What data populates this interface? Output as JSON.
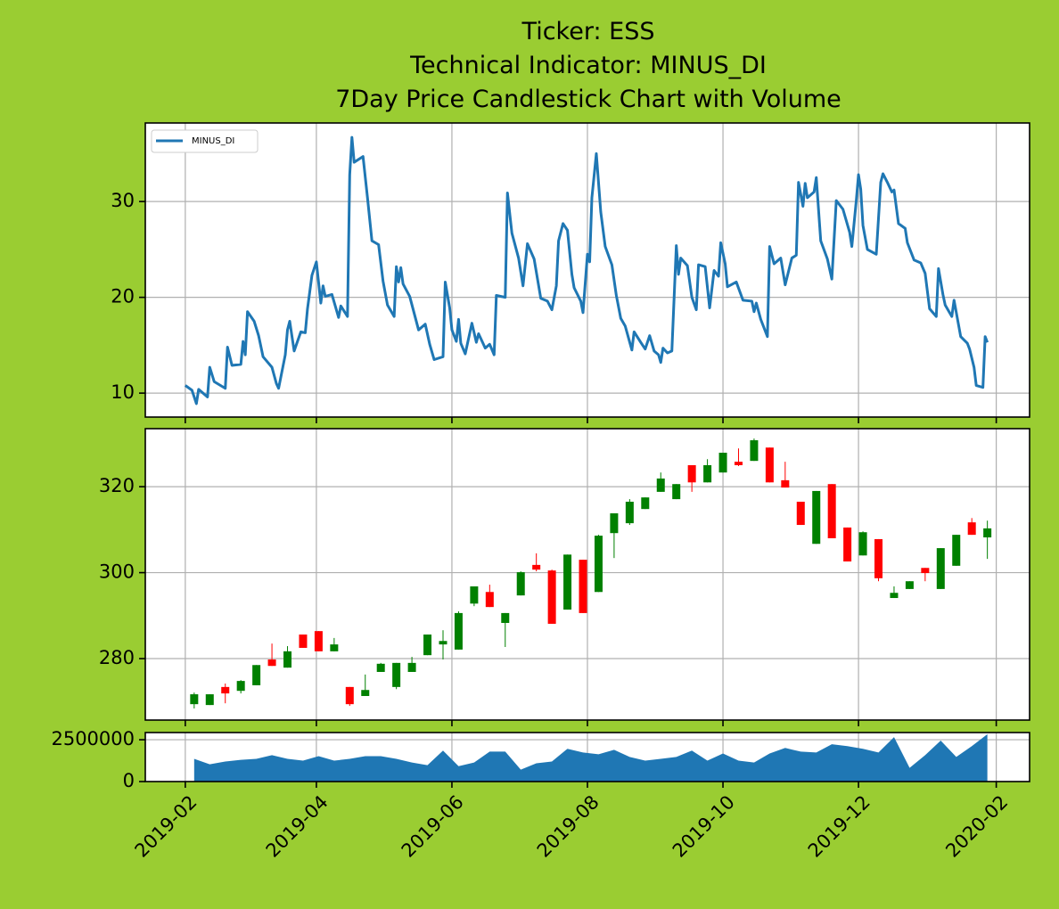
{
  "chart_data": [
    {
      "type": "line",
      "title": [
        "Ticker: ESS",
        "Technical Indicator: MINUS_DI",
        "7Day Price Candlestick Chart with Volume"
      ],
      "x": [
        "2019-02-01",
        "2019-02-04",
        "2019-02-06",
        "2019-02-07",
        "2019-02-11",
        "2019-02-12",
        "2019-02-14",
        "2019-02-19",
        "2019-02-20",
        "2019-02-22",
        "2019-02-26",
        "2019-02-27",
        "2019-02-28",
        "2019-03-01",
        "2019-03-04",
        "2019-03-06",
        "2019-03-08",
        "2019-03-12",
        "2019-03-14",
        "2019-03-15",
        "2019-03-18",
        "2019-03-19",
        "2019-03-20",
        "2019-03-22",
        "2019-03-25",
        "2019-03-27",
        "2019-03-28",
        "2019-03-30",
        "2019-04-01",
        "2019-04-03",
        "2019-04-04",
        "2019-04-05",
        "2019-04-08",
        "2019-04-11",
        "2019-04-12",
        "2019-04-15",
        "2019-04-16",
        "2019-04-17",
        "2019-04-18",
        "2019-04-22",
        "2019-04-24",
        "2019-04-26",
        "2019-04-29",
        "2019-05-01",
        "2019-05-03",
        "2019-05-06",
        "2019-05-07",
        "2019-05-08",
        "2019-05-09",
        "2019-05-10",
        "2019-05-13",
        "2019-05-17",
        "2019-05-20",
        "2019-05-22",
        "2019-05-24",
        "2019-05-28",
        "2019-05-29",
        "2019-05-31",
        "2019-06-01",
        "2019-06-03",
        "2019-06-04",
        "2019-06-05",
        "2019-06-07",
        "2019-06-10",
        "2019-06-12",
        "2019-06-13",
        "2019-06-16",
        "2019-06-18",
        "2019-06-20",
        "2019-06-21",
        "2019-06-25",
        "2019-06-26",
        "2019-06-28",
        "2019-07-01",
        "2019-07-03",
        "2019-07-05",
        "2019-07-08",
        "2019-07-11",
        "2019-07-14",
        "2019-07-16",
        "2019-07-18",
        "2019-07-19",
        "2019-07-21",
        "2019-07-23",
        "2019-07-25",
        "2019-07-26",
        "2019-07-29",
        "2019-07-30",
        "2019-08-01",
        "2019-08-02",
        "2019-08-03",
        "2019-08-05",
        "2019-08-07",
        "2019-08-09",
        "2019-08-12",
        "2019-08-14",
        "2019-08-16",
        "2019-08-18",
        "2019-08-21",
        "2019-08-22",
        "2019-08-25",
        "2019-08-27",
        "2019-08-29",
        "2019-08-31",
        "2019-09-02",
        "2019-09-03",
        "2019-09-04",
        "2019-09-06",
        "2019-09-08",
        "2019-09-10",
        "2019-09-11",
        "2019-09-12",
        "2019-09-15",
        "2019-09-17",
        "2019-09-19",
        "2019-09-20",
        "2019-09-23",
        "2019-09-25",
        "2019-09-27",
        "2019-09-29",
        "2019-09-30",
        "2019-10-02",
        "2019-10-03",
        "2019-10-07",
        "2019-10-10",
        "2019-10-14",
        "2019-10-15",
        "2019-10-16",
        "2019-10-18",
        "2019-10-21",
        "2019-10-22",
        "2019-10-24",
        "2019-10-27",
        "2019-10-29",
        "2019-11-01",
        "2019-11-03",
        "2019-11-04",
        "2019-11-06",
        "2019-11-07",
        "2019-11-08",
        "2019-11-11",
        "2019-11-12",
        "2019-11-14",
        "2019-11-17",
        "2019-11-19",
        "2019-11-21",
        "2019-11-24",
        "2019-11-27",
        "2019-11-28",
        "2019-11-30",
        "2019-12-01",
        "2019-12-02",
        "2019-12-03",
        "2019-12-05",
        "2019-12-09",
        "2019-12-11",
        "2019-12-12",
        "2019-12-14",
        "2019-12-16",
        "2019-12-17",
        "2019-12-19",
        "2019-12-22",
        "2019-12-23",
        "2019-12-26",
        "2019-12-29",
        "2019-12-31",
        "2020-01-02",
        "2020-01-05",
        "2020-01-06",
        "2020-01-08",
        "2020-01-09",
        "2020-01-12",
        "2020-01-13",
        "2020-01-16",
        "2020-01-19",
        "2020-01-20",
        "2020-01-22",
        "2020-01-23",
        "2020-01-26",
        "2020-01-27",
        "2020-01-28"
      ],
      "series": [
        {
          "name": "MINUS_DI",
          "color": "#1f77b4",
          "values": [
            10.8,
            10.3,
            8.9,
            10.4,
            9.6,
            12.7,
            11.2,
            10.5,
            14.8,
            12.9,
            13.0,
            15.4,
            14.0,
            18.5,
            17.5,
            16.0,
            13.8,
            12.7,
            11.0,
            10.5,
            14.0,
            16.6,
            17.5,
            14.4,
            16.4,
            16.3,
            18.8,
            22.3,
            23.7,
            19.4,
            21.2,
            20.1,
            20.3,
            17.9,
            19.1,
            18.0,
            32.8,
            36.7,
            34.1,
            34.7,
            30.4,
            25.9,
            25.5,
            21.7,
            19.2,
            18.0,
            23.2,
            21.6,
            23.1,
            21.4,
            20.1,
            16.6,
            17.2,
            15.1,
            13.5,
            13.8,
            21.6,
            18.9,
            16.6,
            15.4,
            17.7,
            15.2,
            14.1,
            17.3,
            15.3,
            16.2,
            14.7,
            15.1,
            14.0,
            20.2,
            20.0,
            30.9,
            26.7,
            24.1,
            21.2,
            25.6,
            24.0,
            19.9,
            19.6,
            18.7,
            21.2,
            25.9,
            27.7,
            27.0,
            22.4,
            21.0,
            19.6,
            18.4,
            24.5,
            23.7,
            30.4,
            35.0,
            28.9,
            25.3,
            23.4,
            20.2,
            17.8,
            17.0,
            14.5,
            16.4,
            15.3,
            14.6,
            16.0,
            14.4,
            14.0,
            13.2,
            14.7,
            14.2,
            14.4,
            25.4,
            22.4,
            24.1,
            23.3,
            20.0,
            18.7,
            23.4,
            23.2,
            18.9,
            22.8,
            22.2,
            25.7,
            23.5,
            21.1,
            21.6,
            19.7,
            19.6,
            18.5,
            19.4,
            17.7,
            15.9,
            25.3,
            23.5,
            24.1,
            21.3,
            24.1,
            24.4,
            32.0,
            29.5,
            31.9,
            30.4,
            31.0,
            32.5,
            25.9,
            24.0,
            21.9,
            30.1,
            29.2,
            26.8,
            25.3,
            30.1,
            32.8,
            31.3,
            27.5,
            25.0,
            24.5,
            32.0,
            32.9,
            32.0,
            31.0,
            31.2,
            27.7,
            27.2,
            25.7,
            23.9,
            23.6,
            22.5,
            18.8,
            18.0,
            23.0,
            20.3,
            19.2,
            18.0,
            19.7,
            15.9,
            15.2,
            14.6,
            12.7,
            10.8,
            10.6,
            15.9,
            15.3
          ]
        }
      ],
      "ylim": [
        7.5,
        38.2
      ],
      "yticks": [
        10,
        20,
        30
      ],
      "grid": true,
      "legend": "upper left"
    },
    {
      "type": "candlestick",
      "x": [
        "2019-02-05",
        "2019-02-12",
        "2019-02-19",
        "2019-02-26",
        "2019-03-05",
        "2019-03-12",
        "2019-03-19",
        "2019-03-26",
        "2019-04-02",
        "2019-04-09",
        "2019-04-16",
        "2019-04-23",
        "2019-04-30",
        "2019-05-07",
        "2019-05-14",
        "2019-05-21",
        "2019-05-28",
        "2019-06-04",
        "2019-06-11",
        "2019-06-18",
        "2019-06-25",
        "2019-07-02",
        "2019-07-09",
        "2019-07-16",
        "2019-07-23",
        "2019-07-30",
        "2019-08-06",
        "2019-08-13",
        "2019-08-20",
        "2019-08-27",
        "2019-09-03",
        "2019-09-10",
        "2019-09-17",
        "2019-09-24",
        "2019-10-01",
        "2019-10-08",
        "2019-10-15",
        "2019-10-22",
        "2019-10-29",
        "2019-11-05",
        "2019-11-12",
        "2019-11-19",
        "2019-11-26",
        "2019-12-03",
        "2019-12-10",
        "2019-12-17",
        "2019-12-24",
        "2019-12-31",
        "2020-01-07",
        "2020-01-14",
        "2020-01-21",
        "2020-01-28"
      ],
      "open": [
        269.4,
        269.2,
        273.4,
        272.5,
        273.8,
        279.8,
        277.9,
        285.6,
        286.4,
        281.7,
        273.4,
        271.3,
        276.9,
        273.4,
        276.9,
        280.8,
        283.3,
        282.1,
        292.8,
        295.5,
        288.3,
        294.7,
        301.8,
        300.5,
        291.4,
        303.0,
        295.5,
        309.2,
        311.5,
        314.8,
        318.8,
        317.1,
        325.0,
        321.0,
        323.3,
        325.8,
        326.0,
        329.1,
        321.5,
        316.5,
        306.7,
        320.6,
        310.5,
        304.0,
        307.8,
        294.1,
        296.2,
        301.1,
        296.2,
        301.6,
        311.7,
        308.2
      ],
      "high": [
        272.1,
        271.7,
        274.2,
        275.0,
        278.5,
        283.5,
        282.9,
        285.6,
        286.4,
        284.8,
        273.4,
        276.3,
        279.0,
        279.0,
        280.4,
        285.6,
        286.6,
        291.0,
        296.8,
        297.2,
        290.6,
        300.3,
        304.5,
        300.7,
        304.2,
        303.0,
        308.8,
        313.8,
        317.1,
        317.5,
        323.3,
        320.6,
        325.0,
        326.4,
        327.9,
        328.9,
        331.2,
        329.1,
        325.8,
        316.5,
        319.0,
        320.6,
        310.5,
        309.6,
        307.8,
        296.8,
        298.0,
        301.1,
        305.7,
        308.8,
        312.7,
        312.1
      ],
      "low": [
        268.4,
        269.2,
        269.6,
        271.9,
        273.8,
        278.3,
        277.9,
        282.5,
        281.7,
        281.7,
        269.0,
        271.3,
        276.9,
        272.9,
        276.9,
        280.8,
        279.8,
        282.1,
        292.2,
        292.0,
        282.7,
        294.7,
        300.3,
        288.1,
        291.4,
        290.6,
        295.5,
        303.4,
        311.1,
        314.8,
        318.8,
        317.1,
        318.8,
        321.0,
        323.3,
        324.8,
        326.0,
        321.0,
        319.8,
        311.1,
        306.7,
        308.0,
        302.6,
        304.0,
        298.0,
        294.1,
        296.2,
        298.0,
        296.2,
        301.6,
        308.8,
        303.2
      ],
      "close": [
        271.7,
        271.7,
        271.9,
        274.8,
        278.5,
        278.3,
        281.7,
        282.5,
        281.7,
        283.3,
        269.4,
        272.7,
        278.8,
        279.0,
        279.0,
        285.6,
        284.1,
        290.6,
        296.8,
        292.0,
        290.6,
        300.1,
        300.7,
        288.1,
        304.2,
        290.6,
        308.6,
        313.8,
        316.5,
        317.5,
        321.9,
        320.6,
        321.0,
        325.0,
        327.9,
        325.0,
        330.8,
        321.0,
        319.8,
        311.1,
        319.0,
        308.0,
        302.6,
        309.4,
        298.7,
        295.3,
        298.0,
        299.9,
        305.7,
        308.8,
        308.8,
        310.3
      ],
      "up_color": "green",
      "down_color": "red",
      "ylim": [
        265.7,
        333.5
      ],
      "yticks": [
        280,
        300,
        320
      ],
      "grid": true
    },
    {
      "type": "area",
      "x": [
        "2019-02-05",
        "2019-02-12",
        "2019-02-19",
        "2019-02-26",
        "2019-03-05",
        "2019-03-12",
        "2019-03-19",
        "2019-03-26",
        "2019-04-02",
        "2019-04-09",
        "2019-04-16",
        "2019-04-23",
        "2019-04-30",
        "2019-05-07",
        "2019-05-14",
        "2019-05-21",
        "2019-05-28",
        "2019-06-04",
        "2019-06-11",
        "2019-06-18",
        "2019-06-25",
        "2019-07-02",
        "2019-07-09",
        "2019-07-16",
        "2019-07-23",
        "2019-07-30",
        "2019-08-06",
        "2019-08-13",
        "2019-08-20",
        "2019-08-27",
        "2019-09-03",
        "2019-09-10",
        "2019-09-17",
        "2019-09-24",
        "2019-10-01",
        "2019-10-08",
        "2019-10-15",
        "2019-10-22",
        "2019-10-29",
        "2019-11-05",
        "2019-11-12",
        "2019-11-19",
        "2019-11-26",
        "2019-12-03",
        "2019-12-10",
        "2019-12-17",
        "2019-12-24",
        "2019-12-31",
        "2020-01-07",
        "2020-01-14",
        "2020-01-21",
        "2020-01-28"
      ],
      "values": [
        1360000,
        1030000,
        1200000,
        1300000,
        1360000,
        1580000,
        1360000,
        1250000,
        1520000,
        1250000,
        1360000,
        1520000,
        1520000,
        1360000,
        1140000,
        980000,
        1850000,
        920000,
        1140000,
        1790000,
        1790000,
        710000,
        1090000,
        1200000,
        1960000,
        1740000,
        1630000,
        1900000,
        1470000,
        1250000,
        1360000,
        1470000,
        1850000,
        1250000,
        1680000,
        1250000,
        1140000,
        1680000,
        2010000,
        1790000,
        1740000,
        2230000,
        2120000,
        1960000,
        1740000,
        2660000,
        820000,
        1580000,
        2450000,
        1470000,
        2120000,
        2830000
      ],
      "color": "#1f77b4",
      "ylim": [
        0,
        2930000
      ],
      "yticks": [
        0,
        2500000
      ],
      "grid": true,
      "xlim": [
        "2019-01-14",
        "2020-02-16"
      ],
      "xticks": [
        {
          "value": "2019-02-01",
          "label": "2019-02"
        },
        {
          "value": "2019-04-01",
          "label": "2019-04"
        },
        {
          "value": "2019-06-01",
          "label": "2019-06"
        },
        {
          "value": "2019-08-01",
          "label": "2019-08"
        },
        {
          "value": "2019-10-01",
          "label": "2019-10"
        },
        {
          "value": "2019-12-01",
          "label": "2019-12"
        },
        {
          "value": "2020-02-01",
          "label": "2020-02"
        }
      ]
    }
  ]
}
